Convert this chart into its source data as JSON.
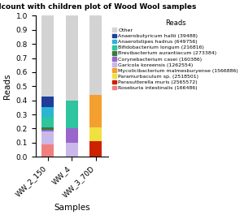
{
  "title": "malized readcount with children plot of Wood Wool samples",
  "xlabel": "Samples",
  "ylabel": "Reads",
  "samples": [
    "WW_2_150",
    "WW_4",
    "WW_3_70D"
  ],
  "legend_title": "Reads",
  "categories": [
    "Roseburia intestinalis (166486)",
    "Garicola koreensis (1262554)",
    "Corynebacterium casei (160386)",
    "Brevibacterium aurantiacum (273384)",
    "Bifidobacterium longum (216816)",
    "Anaerotstipes hadrus (649756)",
    "Anaerobutyricum hallii (39488)",
    "Parasutterella muris (2565572)",
    "Paramurbaculum sp. (2518501)",
    "Mycolicibacterium malmesburyense (1566886)",
    "Other"
  ],
  "colors": [
    "#f08080",
    "#c9b8e8",
    "#9966cc",
    "#3a7a3a",
    "#2ec4a0",
    "#29b6d4",
    "#1f3d99",
    "#cc2200",
    "#f0e040",
    "#f4a030",
    "#d3d3d3"
  ],
  "values": {
    "WW_2_150": [
      0.09,
      0.09,
      0.01,
      0.02,
      0.075,
      0.065,
      0.075,
      0.0,
      0.0,
      0.0,
      0.575
    ],
    "WW_4": [
      0.0,
      0.1,
      0.1,
      0.0,
      0.2,
      0.0,
      0.0,
      0.0,
      0.0,
      0.0,
      0.6
    ],
    "WW_3_70D": [
      0.0,
      0.0,
      0.0,
      0.0,
      0.0,
      0.0,
      0.0,
      0.11,
      0.1,
      0.23,
      0.66
    ]
  },
  "legend_order": [
    "Other",
    "Anaerobutyricum hallii (39488)",
    "Anaerotstipes hadrus (649756)",
    "Bifidobacterium longum (216816)",
    "Brevibacterium aurantiacum (273384)",
    "Corynebacterium casei (160386)",
    "Garicola koreensis (1262554)",
    "Mycolicibacterium malmesburyense (1566886)",
    "Paramurbaculum sp. (2518501)",
    "Parasutterella muris (2565572)",
    "Roseburia intestinalis (166486)"
  ],
  "legend_colors": [
    "#d3d3d3",
    "#1f3d99",
    "#29b6d4",
    "#2ec4a0",
    "#3a7a3a",
    "#9966cc",
    "#c9b8e8",
    "#f4a030",
    "#f0e040",
    "#cc2200",
    "#f08080"
  ],
  "ylim": [
    0,
    1.0
  ],
  "figsize": [
    3.0,
    2.65
  ],
  "dpi": 100
}
